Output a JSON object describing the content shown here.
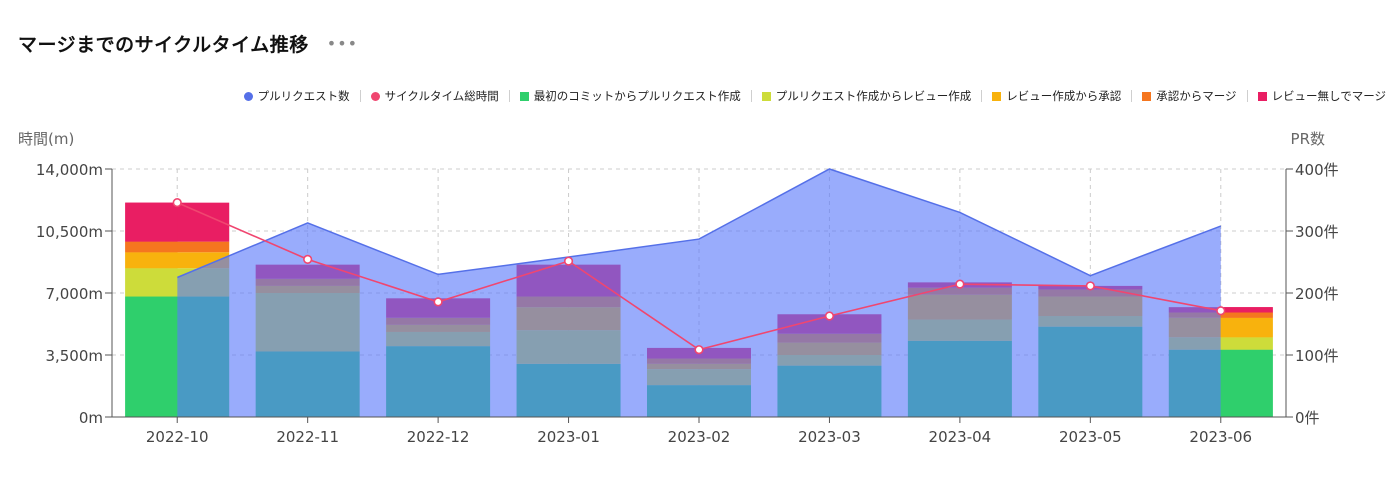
{
  "header": {
    "title": "マージまでのサイクルタイム推移",
    "more_label": "•••"
  },
  "colors": {
    "pr_area": "#93a7fb",
    "pr_line": "#5570e8",
    "cycle_line": "#f04670",
    "first_commit": "#2fcf6c",
    "pr_to_review": "#cddc3a",
    "review_to_approve": "#f8b20d",
    "approve_to_merge": "#f5761f",
    "review_none": "#e91e63"
  },
  "legend": [
    {
      "label": "プルリクエスト数",
      "color": "#5570e8",
      "shape": "circle"
    },
    {
      "label": "サイクルタイム総時間",
      "color": "#f04670",
      "shape": "circle"
    },
    {
      "label": "最初のコミットからプルリクエスト作成",
      "color": "#2fcf6c",
      "shape": "square"
    },
    {
      "label": "プルリクエスト作成からレビュー作成",
      "color": "#cddc3a",
      "shape": "square"
    },
    {
      "label": "レビュー作成から承認",
      "color": "#f8b20d",
      "shape": "square"
    },
    {
      "label": "承認からマージ",
      "color": "#f5761f",
      "shape": "square"
    },
    {
      "label": "レビュー無しでマージ",
      "color": "#e91e63",
      "shape": "square"
    }
  ],
  "chart_data": {
    "type": "bar",
    "categories": [
      "2022-10",
      "2022-11",
      "2022-12",
      "2023-01",
      "2023-02",
      "2023-03",
      "2023-04",
      "2023-05",
      "2023-06"
    ],
    "y_left": {
      "label": "時間(m)",
      "range": [
        0,
        14000
      ],
      "ticks": [
        0,
        3500,
        7000,
        10500,
        14000
      ],
      "tick_labels": [
        "0m",
        "3,500m",
        "7,000m",
        "10,500m",
        "14,000m"
      ]
    },
    "y_right": {
      "label": "PR数",
      "range": [
        0,
        400
      ],
      "ticks": [
        0,
        100,
        200,
        300,
        400
      ],
      "tick_labels": [
        "0件",
        "100件",
        "200件",
        "300件",
        "400件"
      ]
    },
    "grid": true,
    "legend_position": "top-right",
    "stacked_series": [
      {
        "name": "最初のコミットからプルリクエスト作成",
        "color": "#2fcf6c",
        "values": [
          6800,
          3700,
          4000,
          3000,
          1800,
          2900,
          4300,
          5100,
          3800
        ]
      },
      {
        "name": "プルリクエスト作成からレビュー作成",
        "color": "#cddc3a",
        "values": [
          1600,
          3300,
          800,
          1900,
          900,
          600,
          1200,
          600,
          700
        ]
      },
      {
        "name": "レビュー作成から承認",
        "color": "#f8b20d",
        "values": [
          900,
          400,
          400,
          1300,
          300,
          700,
          1400,
          1100,
          1100
        ]
      },
      {
        "name": "承認からマージ",
        "color": "#f5761f",
        "values": [
          600,
          400,
          400,
          600,
          300,
          500,
          400,
          400,
          300
        ]
      },
      {
        "name": "レビュー無しでマージ",
        "color": "#e91e63",
        "values": [
          2200,
          800,
          1100,
          1800,
          600,
          1100,
          300,
          200,
          300
        ]
      }
    ],
    "line_series": [
      {
        "name": "プルリクエスト数",
        "axis": "right",
        "style": "area",
        "color": "#5570e8",
        "values": [
          225,
          313,
          230,
          258,
          287,
          400,
          330,
          228,
          308
        ]
      },
      {
        "name": "サイクルタイム総時間",
        "axis": "left",
        "style": "line",
        "color": "#f04670",
        "values": [
          12100,
          8900,
          6500,
          8800,
          3800,
          5700,
          7500,
          7400,
          6000
        ]
      }
    ]
  }
}
